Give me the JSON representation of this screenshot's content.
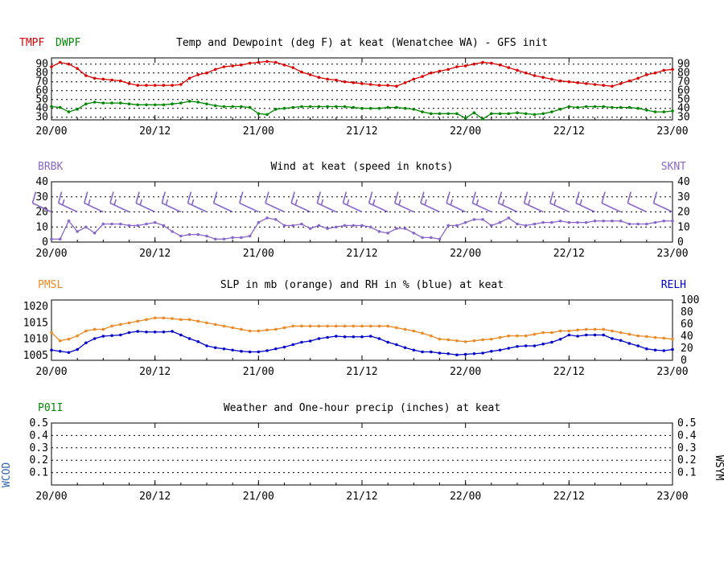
{
  "chart_data": [
    {
      "type": "line",
      "title": "Temp and Dewpoint (deg F) at keat  (Wenatchee WA) - GFS init",
      "left_labels": [
        "TMPF",
        "DWPF"
      ],
      "x_tick_labels": [
        "20/00",
        "20/12",
        "21/00",
        "21/12",
        "22/00",
        "22/12",
        "23/00"
      ],
      "x_hours_range": [
        0,
        72
      ],
      "ylim": [
        27,
        97
      ],
      "y_ticks": [
        30,
        40,
        50,
        60,
        70,
        80,
        90
      ],
      "grid_lines": [
        30,
        40,
        50,
        60,
        70,
        80,
        90
      ],
      "series": [
        {
          "name": "TMPF",
          "color": "#dd0000",
          "hours": [
            0,
            1,
            2,
            3,
            4,
            5,
            6,
            7,
            8,
            9,
            10,
            11,
            12,
            13,
            14,
            15,
            16,
            17,
            18,
            19,
            20,
            21,
            22,
            23,
            24,
            25,
            26,
            27,
            28,
            29,
            30,
            31,
            32,
            33,
            34,
            35,
            36,
            37,
            38,
            39,
            40,
            41,
            42,
            43,
            44,
            45,
            46,
            47,
            48,
            49,
            50,
            51,
            52,
            53,
            54,
            55,
            56,
            57,
            58,
            59,
            60,
            61,
            62,
            63,
            64,
            65,
            66,
            67,
            68,
            69,
            70,
            71,
            72
          ],
          "values": [
            87,
            92,
            90,
            85,
            77,
            74,
            73,
            72,
            71,
            68,
            66,
            66,
            66,
            66,
            66,
            67,
            74,
            78,
            80,
            84,
            87,
            88,
            89,
            91,
            92,
            93,
            92,
            89,
            86,
            81,
            78,
            75,
            73,
            72,
            70,
            69,
            68,
            67,
            66,
            66,
            65,
            69,
            73,
            76,
            80,
            82,
            84,
            87,
            88,
            90,
            92,
            91,
            89,
            86,
            83,
            80,
            77,
            75,
            73,
            71,
            70,
            69,
            68,
            67,
            66,
            65,
            68,
            71,
            74,
            78,
            80,
            83,
            84
          ]
        },
        {
          "name": "DWPF",
          "color": "#008800",
          "hours": [
            0,
            1,
            2,
            3,
            4,
            5,
            6,
            7,
            8,
            9,
            10,
            11,
            12,
            13,
            14,
            15,
            16,
            17,
            18,
            19,
            20,
            21,
            22,
            23,
            24,
            25,
            26,
            27,
            28,
            29,
            30,
            31,
            32,
            33,
            34,
            35,
            36,
            37,
            38,
            39,
            40,
            41,
            42,
            43,
            44,
            45,
            46,
            47,
            48,
            49,
            50,
            51,
            52,
            53,
            54,
            55,
            56,
            57,
            58,
            59,
            60,
            61,
            62,
            63,
            64,
            65,
            66,
            67,
            68,
            69,
            70,
            71,
            72
          ],
          "values": [
            42,
            41,
            36,
            39,
            45,
            47,
            46,
            46,
            46,
            45,
            44,
            44,
            44,
            44,
            45,
            46,
            48,
            47,
            45,
            43,
            42,
            42,
            42,
            41,
            34,
            33,
            39,
            40,
            41,
            42,
            42,
            42,
            42,
            42,
            42,
            41,
            40,
            40,
            40,
            41,
            41,
            40,
            39,
            36,
            34,
            34,
            34,
            34,
            29,
            35,
            28,
            34,
            34,
            34,
            35,
            34,
            33,
            34,
            36,
            39,
            42,
            41,
            42,
            42,
            42,
            41,
            41,
            41,
            40,
            38,
            36,
            36,
            37
          ]
        }
      ]
    },
    {
      "type": "line",
      "title": "Wind at  keat  (speed in knots)",
      "left_label": "BRBK",
      "right_label": "SKNT",
      "x_tick_labels": [
        "20/00",
        "20/12",
        "21/00",
        "21/12",
        "22/00",
        "22/12",
        "23/00"
      ],
      "x_hours_range": [
        0,
        72
      ],
      "ylim": [
        0,
        40
      ],
      "y_ticks": [
        0,
        10,
        20,
        30,
        40
      ],
      "grid_lines": [
        10,
        20,
        30
      ],
      "series": [
        {
          "name": "SKNT",
          "color": "#8866cc",
          "hours": [
            0,
            1,
            2,
            3,
            4,
            5,
            6,
            7,
            8,
            9,
            10,
            11,
            12,
            13,
            14,
            15,
            16,
            17,
            18,
            19,
            20,
            21,
            22,
            23,
            24,
            25,
            26,
            27,
            28,
            29,
            30,
            31,
            32,
            33,
            34,
            35,
            36,
            37,
            38,
            39,
            40,
            41,
            42,
            43,
            44,
            45,
            46,
            47,
            48,
            49,
            50,
            51,
            52,
            53,
            54,
            55,
            56,
            57,
            58,
            59,
            60,
            61,
            62,
            63,
            64,
            65,
            66,
            67,
            68,
            69,
            70,
            71,
            72
          ],
          "values": [
            2,
            2,
            14,
            7,
            10,
            6,
            12,
            12,
            12,
            11,
            11,
            12,
            13,
            11,
            7,
            4,
            5,
            5,
            4,
            2,
            2,
            3,
            3,
            4,
            13,
            16,
            15,
            11,
            11,
            12,
            9,
            11,
            9,
            10,
            11,
            11,
            11,
            10,
            7,
            6,
            9,
            9,
            6,
            3,
            3,
            2,
            11,
            11,
            13,
            15,
            15,
            11,
            13,
            16,
            12,
            11,
            12,
            13,
            13,
            14,
            13,
            13,
            13,
            14,
            14,
            14,
            14,
            12,
            12,
            12,
            13,
            14,
            14
          ]
        }
      ],
      "barb_hours": [
        0,
        3,
        6,
        9,
        12,
        15,
        18,
        21,
        24,
        27,
        30,
        33,
        36,
        39,
        42,
        45,
        48,
        51,
        54,
        57,
        60,
        63,
        66,
        69,
        72
      ],
      "barb_speeds_kt": [
        10,
        15,
        15,
        15,
        15,
        15,
        15,
        10,
        10,
        10,
        15,
        15,
        15,
        15,
        15,
        15,
        15,
        15,
        15,
        15,
        15,
        15,
        10,
        10,
        10
      ]
    },
    {
      "type": "line",
      "title": "SLP in mb (orange) and RH in % (blue) at  keat",
      "left_label": "PMSL",
      "right_label": "RELH",
      "x_tick_labels": [
        "20/00",
        "20/12",
        "21/00",
        "21/12",
        "22/00",
        "22/12",
        "23/00"
      ],
      "x_hours_range": [
        0,
        72
      ],
      "ylim_left": [
        1003.5,
        1022
      ],
      "y_ticks_left": [
        1005,
        1010,
        1015,
        1020
      ],
      "ylim_right": [
        0,
        100
      ],
      "y_ticks_right": [
        0,
        20,
        40,
        60,
        80,
        100
      ],
      "series": [
        {
          "name": "PMSL",
          "color": "#ee8822",
          "axis": "left",
          "hours": [
            0,
            1,
            2,
            3,
            4,
            5,
            6,
            7,
            8,
            9,
            10,
            11,
            12,
            13,
            14,
            15,
            16,
            17,
            18,
            19,
            20,
            21,
            22,
            23,
            24,
            25,
            26,
            27,
            28,
            29,
            30,
            31,
            32,
            33,
            34,
            35,
            36,
            37,
            38,
            39,
            40,
            41,
            42,
            43,
            44,
            45,
            46,
            47,
            48,
            49,
            50,
            51,
            52,
            53,
            54,
            55,
            56,
            57,
            58,
            59,
            60,
            61,
            62,
            63,
            64,
            65,
            66,
            67,
            68,
            69,
            70,
            71,
            72
          ],
          "values": [
            1012,
            1009.5,
            1010,
            1011,
            1012.5,
            1013,
            1013,
            1014,
            1014.5,
            1015,
            1015.5,
            1016,
            1016.5,
            1016.5,
            1016.3,
            1016,
            1016,
            1015.5,
            1015,
            1014.5,
            1014,
            1013.5,
            1013,
            1012.5,
            1012.5,
            1012.8,
            1013,
            1013.5,
            1014,
            1014,
            1014,
            1014,
            1014,
            1014,
            1014,
            1014,
            1014,
            1014,
            1014,
            1014,
            1013.5,
            1013,
            1012.5,
            1011.8,
            1011,
            1010,
            1009.8,
            1009.5,
            1009.2,
            1009.5,
            1009.8,
            1010,
            1010.5,
            1011,
            1011,
            1011,
            1011.5,
            1012,
            1012,
            1012.5,
            1012.5,
            1012.8,
            1013,
            1013,
            1013,
            1012.5,
            1012,
            1011.5,
            1011,
            1010.8,
            1010.5,
            1010.3,
            1010
          ]
        },
        {
          "name": "RELH",
          "color": "#0000cc",
          "axis": "right",
          "hours": [
            0,
            1,
            2,
            3,
            4,
            5,
            6,
            7,
            8,
            9,
            10,
            11,
            12,
            13,
            14,
            15,
            16,
            17,
            18,
            19,
            20,
            21,
            22,
            23,
            24,
            25,
            26,
            27,
            28,
            29,
            30,
            31,
            32,
            33,
            34,
            35,
            36,
            37,
            38,
            39,
            40,
            41,
            42,
            43,
            44,
            45,
            46,
            47,
            48,
            49,
            50,
            51,
            52,
            53,
            54,
            55,
            56,
            57,
            58,
            59,
            60,
            61,
            62,
            63,
            64,
            65,
            66,
            67,
            68,
            69,
            70,
            71,
            72
          ],
          "values": [
            17,
            15,
            13,
            18,
            29,
            36,
            40,
            41,
            42,
            46,
            48,
            47,
            47,
            47,
            48,
            42,
            36,
            31,
            24,
            21,
            19,
            17,
            15,
            14,
            14,
            16,
            19,
            22,
            26,
            30,
            32,
            36,
            38,
            40,
            39,
            39,
            39,
            40,
            36,
            30,
            26,
            21,
            17,
            14,
            14,
            12,
            11,
            9,
            10,
            11,
            12,
            15,
            17,
            20,
            23,
            24,
            24,
            27,
            30,
            35,
            42,
            40,
            42,
            42,
            42,
            36,
            33,
            28,
            24,
            19,
            17,
            16,
            18
          ]
        }
      ]
    },
    {
      "type": "line",
      "title": "Weather and One-hour precip (inches) at  keat",
      "left_label": "P01I",
      "left_side_label": "WCOD",
      "right_side_label": "WSYM",
      "x_tick_labels": [
        "20/00",
        "20/12",
        "21/00",
        "21/12",
        "22/00",
        "22/12",
        "23/00"
      ],
      "x_hours_range": [
        0,
        72
      ],
      "ylim": [
        0,
        0.5
      ],
      "y_ticks": [
        "0.1",
        "0.2",
        "0.3",
        "0.4",
        "0.5"
      ],
      "grid_lines": [
        0.1,
        0.2,
        0.3,
        0.4
      ],
      "series": []
    }
  ]
}
